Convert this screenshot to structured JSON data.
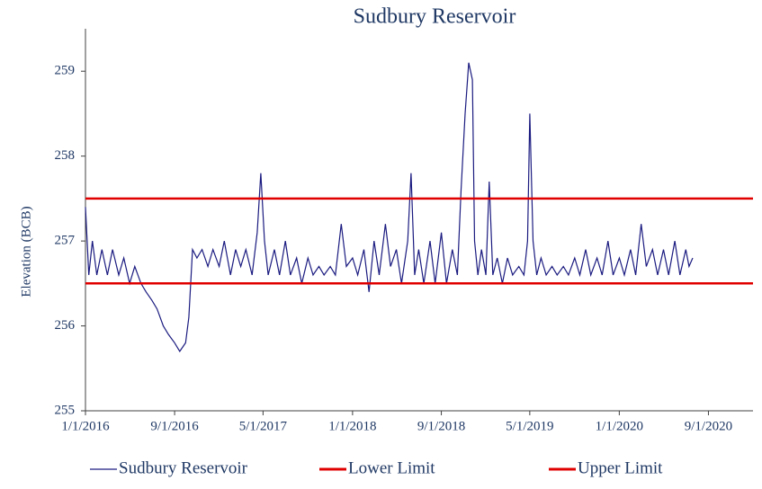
{
  "chart_data": {
    "type": "line",
    "title": "Sudbury Reservoir",
    "ylabel": "Elevation (BCB)",
    "xlim": [
      "2016-01-01",
      "2021-01-01"
    ],
    "xticks": [
      {
        "value": "2016-01-01",
        "label": "1/1/2016"
      },
      {
        "value": "2016-09-01",
        "label": "9/1/2016"
      },
      {
        "value": "2017-05-01",
        "label": "5/1/2017"
      },
      {
        "value": "2018-01-01",
        "label": "1/1/2018"
      },
      {
        "value": "2018-09-01",
        "label": "9/1/2018"
      },
      {
        "value": "2019-05-01",
        "label": "5/1/2019"
      },
      {
        "value": "2020-01-01",
        "label": "1/1/2020"
      },
      {
        "value": "2020-09-01",
        "label": "9/1/2020"
      }
    ],
    "ylim": [
      255,
      259.5
    ],
    "yticks": [
      255,
      256,
      257,
      258,
      259
    ],
    "grid": false,
    "legend": "bottom",
    "series": [
      {
        "name": "Sudbury Reservoir",
        "color": "#1a1a80",
        "x": [
          "2016-01-01",
          "2016-01-10",
          "2016-01-20",
          "2016-02-01",
          "2016-02-15",
          "2016-03-01",
          "2016-03-15",
          "2016-04-01",
          "2016-04-15",
          "2016-05-01",
          "2016-05-15",
          "2016-06-01",
          "2016-06-15",
          "2016-07-01",
          "2016-07-15",
          "2016-08-01",
          "2016-08-15",
          "2016-09-01",
          "2016-09-15",
          "2016-10-01",
          "2016-10-10",
          "2016-10-20",
          "2016-11-01",
          "2016-11-15",
          "2016-12-01",
          "2016-12-15",
          "2017-01-01",
          "2017-01-15",
          "2017-02-01",
          "2017-02-15",
          "2017-03-01",
          "2017-03-15",
          "2017-04-01",
          "2017-04-15",
          "2017-04-25",
          "2017-05-05",
          "2017-05-15",
          "2017-06-01",
          "2017-06-15",
          "2017-07-01",
          "2017-07-15",
          "2017-08-01",
          "2017-08-15",
          "2017-09-01",
          "2017-09-15",
          "2017-10-01",
          "2017-10-15",
          "2017-11-01",
          "2017-11-15",
          "2017-12-01",
          "2017-12-15",
          "2018-01-01",
          "2018-01-15",
          "2018-02-01",
          "2018-02-15",
          "2018-03-01",
          "2018-03-15",
          "2018-04-01",
          "2018-04-15",
          "2018-05-01",
          "2018-05-15",
          "2018-06-01",
          "2018-06-10",
          "2018-06-20",
          "2018-07-01",
          "2018-07-15",
          "2018-08-01",
          "2018-08-15",
          "2018-09-01",
          "2018-09-15",
          "2018-10-01",
          "2018-10-15",
          "2018-10-25",
          "2018-11-05",
          "2018-11-15",
          "2018-11-25",
          "2018-12-01",
          "2018-12-10",
          "2018-12-20",
          "2019-01-01",
          "2019-01-10",
          "2019-01-20",
          "2019-02-01",
          "2019-02-15",
          "2019-03-01",
          "2019-03-15",
          "2019-04-01",
          "2019-04-15",
          "2019-04-25",
          "2019-05-01",
          "2019-05-10",
          "2019-05-20",
          "2019-06-01",
          "2019-06-15",
          "2019-07-01",
          "2019-07-15",
          "2019-08-01",
          "2019-08-15",
          "2019-09-01",
          "2019-09-15",
          "2019-10-01",
          "2019-10-15",
          "2019-11-01",
          "2019-11-15",
          "2019-12-01",
          "2019-12-15",
          "2020-01-01",
          "2020-01-15",
          "2020-02-01",
          "2020-02-15",
          "2020-03-01",
          "2020-03-15",
          "2020-04-01",
          "2020-04-15",
          "2020-05-01",
          "2020-05-15",
          "2020-06-01",
          "2020-06-15",
          "2020-07-01",
          "2020-07-10",
          "2020-07-20"
        ],
        "values": [
          257.4,
          256.6,
          257.0,
          256.6,
          256.9,
          256.6,
          256.9,
          256.6,
          256.8,
          256.5,
          256.7,
          256.5,
          256.4,
          256.3,
          256.2,
          256.0,
          255.9,
          255.8,
          255.7,
          255.8,
          256.1,
          256.9,
          256.8,
          256.9,
          256.7,
          256.9,
          256.7,
          257.0,
          256.6,
          256.9,
          256.7,
          256.9,
          256.6,
          257.1,
          257.8,
          257.0,
          256.6,
          256.9,
          256.6,
          257.0,
          256.6,
          256.8,
          256.5,
          256.8,
          256.6,
          256.7,
          256.6,
          256.7,
          256.6,
          257.2,
          256.7,
          256.8,
          256.6,
          256.9,
          256.4,
          257.0,
          256.6,
          257.2,
          256.7,
          256.9,
          256.5,
          257.0,
          257.8,
          256.6,
          256.9,
          256.5,
          257.0,
          256.5,
          257.1,
          256.5,
          256.9,
          256.6,
          257.6,
          258.5,
          259.1,
          258.9,
          257.0,
          256.6,
          256.9,
          256.6,
          257.7,
          256.6,
          256.8,
          256.5,
          256.8,
          256.6,
          256.7,
          256.6,
          257.0,
          258.5,
          257.0,
          256.6,
          256.8,
          256.6,
          256.7,
          256.6,
          256.7,
          256.6,
          256.8,
          256.6,
          256.9,
          256.6,
          256.8,
          256.6,
          257.0,
          256.6,
          256.8,
          256.6,
          256.9,
          256.6,
          257.2,
          256.7,
          256.9,
          256.6,
          256.9,
          256.6,
          257.0,
          256.6,
          256.9,
          256.7,
          256.8
        ]
      },
      {
        "name": "Lower Limit",
        "color": "#e00000",
        "x": [
          "2016-01-01",
          "2021-01-01"
        ],
        "values": [
          256.5,
          256.5
        ]
      },
      {
        "name": "Upper Limit",
        "color": "#e00000",
        "x": [
          "2016-01-01",
          "2021-01-01"
        ],
        "values": [
          257.5,
          257.5
        ]
      }
    ]
  }
}
